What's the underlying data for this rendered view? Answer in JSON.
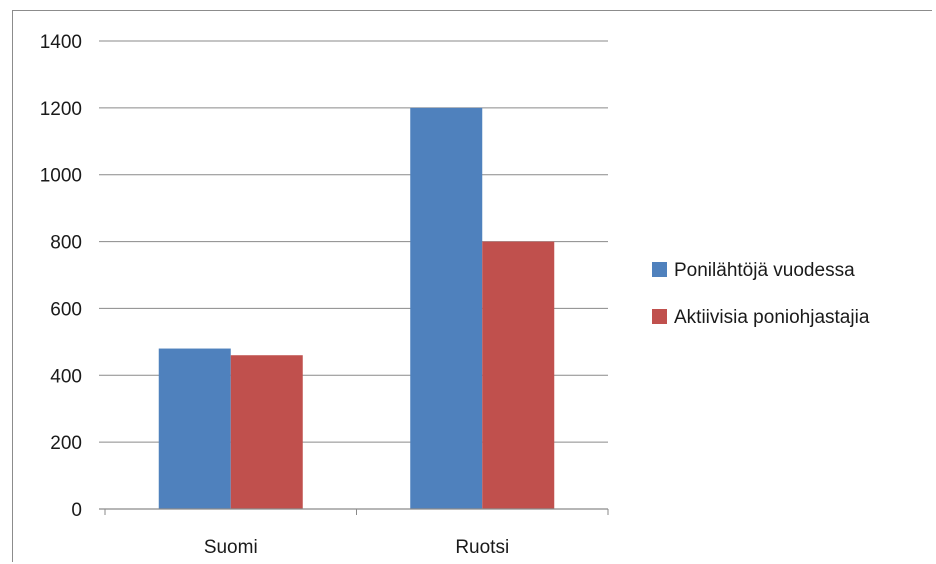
{
  "chart_data": {
    "type": "bar",
    "categories": [
      "Suomi",
      "Ruotsi"
    ],
    "series": [
      {
        "name": "Ponilähtöjä vuodessa",
        "color": "#4f81bd",
        "values": [
          480,
          1200
        ]
      },
      {
        "name": "Aktiivisia poniohjastajia",
        "color": "#c0504d",
        "values": [
          460,
          800
        ]
      }
    ],
    "yticks": [
      0,
      200,
      400,
      600,
      800,
      1000,
      1200,
      1400
    ],
    "ylim": [
      0,
      1400
    ],
    "grid": true,
    "legend_position": "right",
    "title": "",
    "xlabel": "",
    "ylabel": ""
  }
}
